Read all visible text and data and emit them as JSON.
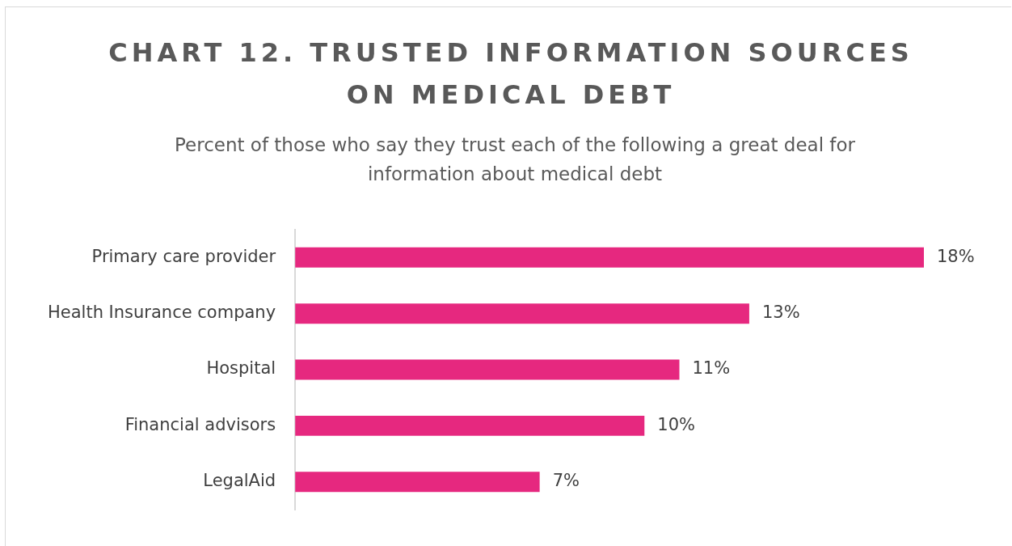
{
  "chart_data": {
    "type": "bar",
    "orientation": "horizontal",
    "title": "CHART 12. TRUSTED INFORMATION SOURCES ON MEDICAL DEBT",
    "subtitle": "Percent of those who say they trust each of the following a great deal for information about medical debt",
    "categories": [
      "Primary care provider",
      "Health Insurance company",
      "Hospital",
      "Financial advisors",
      "LegalAid"
    ],
    "values": [
      18,
      13,
      11,
      10,
      7
    ],
    "color": "#e6287f",
    "data_labels": true,
    "value_labels": [
      "18%",
      "13%",
      "11%",
      "10%",
      "7%"
    ],
    "grid": false,
    "legend": false
  }
}
